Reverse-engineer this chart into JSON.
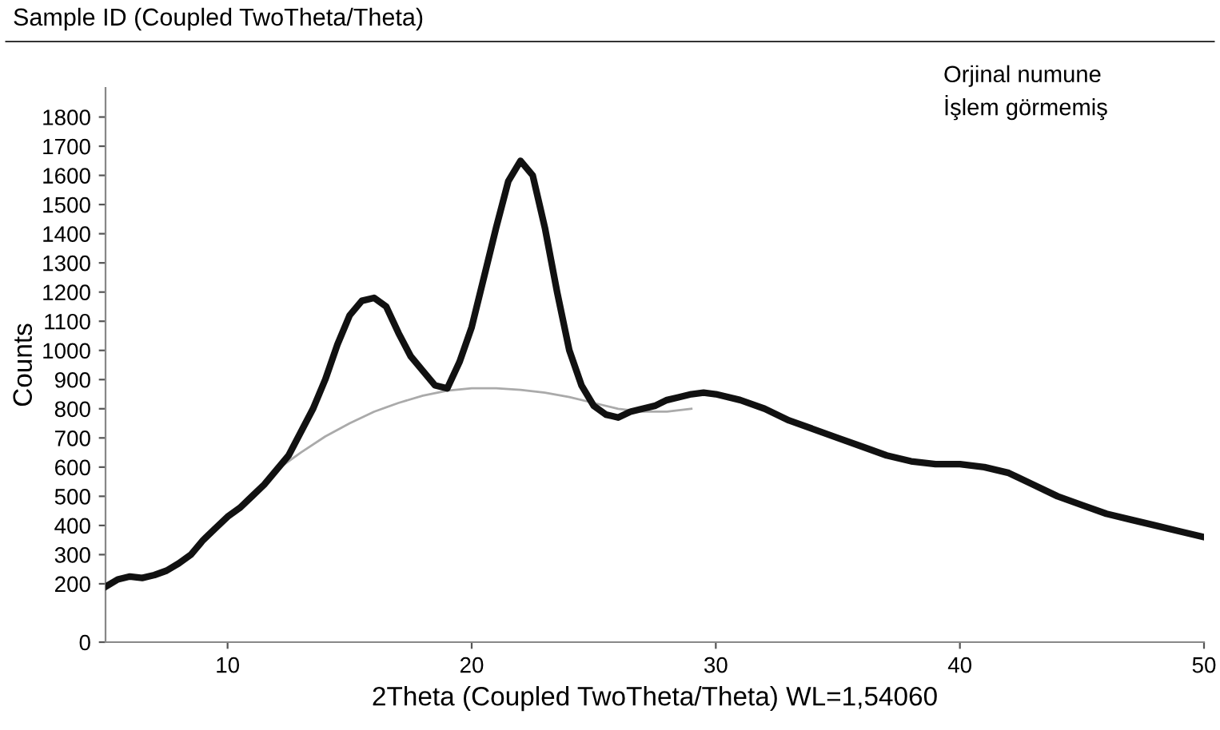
{
  "chart_data": {
    "type": "line",
    "title": "Sample ID (Coupled TwoTheta/Theta)",
    "xlabel": "2Theta (Coupled TwoTheta/Theta) WL=1,54060",
    "ylabel": "Counts",
    "annotations": [
      "Orjinal numune\nİşlem görmemiş"
    ],
    "xlim": [
      5,
      50
    ],
    "ylim": [
      0,
      1900
    ],
    "xticks": [
      10,
      20,
      30,
      40,
      50
    ],
    "yticks": [
      0,
      200,
      300,
      400,
      500,
      600,
      700,
      800,
      900,
      1000,
      1100,
      1200,
      1300,
      1400,
      1500,
      1600,
      1700,
      1800
    ],
    "grid": false,
    "legend": false,
    "marker": "none",
    "line_style": "solid",
    "series": [
      {
        "color": "#111111",
        "x": [
          5,
          5.5,
          6,
          6.5,
          7,
          7.5,
          8,
          8.5,
          9,
          9.5,
          10,
          10.5,
          11,
          11.5,
          12,
          12.5,
          13,
          13.5,
          14,
          14.5,
          15,
          15.5,
          16,
          16.5,
          17,
          17.5,
          18,
          18.5,
          19,
          19.5,
          20,
          20.5,
          21,
          21.5,
          22,
          22.5,
          23,
          23.5,
          24,
          24.5,
          25,
          25.5,
          26,
          26.5,
          27,
          27.5,
          28,
          28.5,
          29,
          29.5,
          30,
          31,
          32,
          33,
          34,
          35,
          36,
          37,
          38,
          39,
          40,
          41,
          42,
          43,
          44,
          45,
          46,
          47,
          48,
          49,
          50
        ],
        "values": [
          190,
          215,
          225,
          220,
          230,
          245,
          270,
          300,
          350,
          390,
          430,
          460,
          500,
          540,
          590,
          640,
          720,
          800,
          900,
          1020,
          1120,
          1170,
          1180,
          1150,
          1060,
          980,
          930,
          880,
          870,
          960,
          1080,
          1250,
          1420,
          1580,
          1650,
          1600,
          1420,
          1200,
          1000,
          880,
          810,
          780,
          770,
          790,
          800,
          810,
          830,
          840,
          850,
          855,
          850,
          830,
          800,
          760,
          730,
          700,
          670,
          640,
          620,
          610,
          610,
          600,
          580,
          540,
          500,
          470,
          440,
          420,
          400,
          380,
          360
        ]
      },
      {
        "color": "#aaaaaa",
        "x": [
          12,
          13,
          14,
          15,
          16,
          17,
          18,
          19,
          20,
          21,
          22,
          23,
          24,
          25,
          26,
          27,
          28,
          29
        ],
        "values": [
          590,
          650,
          705,
          750,
          790,
          820,
          845,
          862,
          870,
          870,
          865,
          855,
          840,
          820,
          800,
          790,
          790,
          800
        ]
      }
    ]
  }
}
